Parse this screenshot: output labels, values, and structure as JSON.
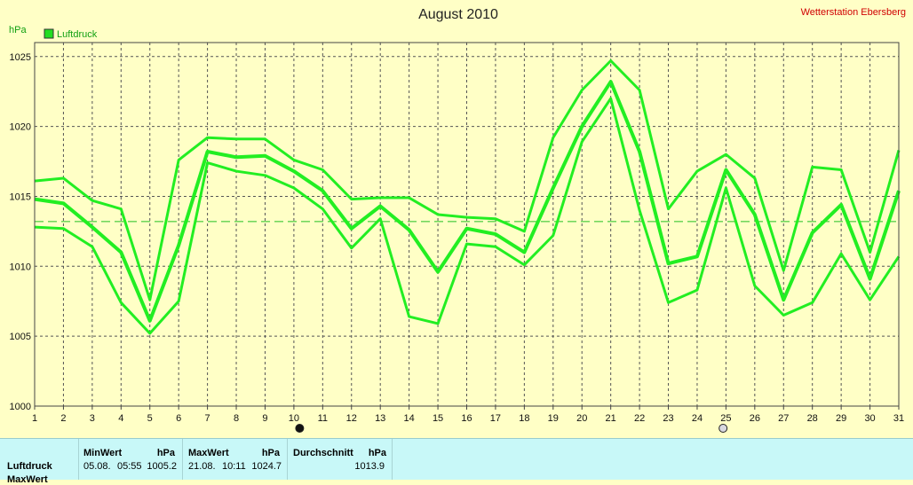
{
  "chart_data": {
    "type": "line",
    "title": "August 2010",
    "station": "Wetterstation Ebersberg",
    "ylabel": "hPa",
    "legend": [
      {
        "label": "Luftdruck",
        "color": "#22dd22"
      }
    ],
    "legend_placement": "top-left",
    "grid": true,
    "ylim": [
      1000,
      1026
    ],
    "yticks": [
      1000,
      1005,
      1010,
      1015,
      1020,
      1025
    ],
    "x": [
      1,
      2,
      3,
      4,
      5,
      6,
      7,
      8,
      9,
      10,
      11,
      12,
      13,
      14,
      15,
      16,
      17,
      18,
      19,
      20,
      21,
      22,
      23,
      24,
      25,
      26,
      27,
      28,
      29,
      30,
      31
    ],
    "mean_line": 1013.2,
    "series": [
      {
        "role": "max",
        "values": [
          1016.1,
          1016.3,
          1014.7,
          1014.1,
          1007.6,
          1017.6,
          1019.2,
          1019.1,
          1019.1,
          1017.6,
          1016.9,
          1014.8,
          1014.9,
          1014.9,
          1013.7,
          1013.5,
          1013.4,
          1012.5,
          1019.2,
          1022.6,
          1024.7,
          1022.6,
          1014.1,
          1016.8,
          1018.0,
          1016.3,
          1009.7,
          1017.1,
          1016.9,
          1011.0,
          1018.3
        ]
      },
      {
        "role": "avg",
        "values": [
          1014.8,
          1014.5,
          1012.8,
          1011.0,
          1006.1,
          1011.5,
          1018.2,
          1017.8,
          1017.9,
          1016.8,
          1015.4,
          1012.7,
          1014.3,
          1012.6,
          1009.6,
          1012.7,
          1012.3,
          1011.0,
          1015.6,
          1020.0,
          1023.2,
          1018.2,
          1010.2,
          1010.7,
          1016.9,
          1013.7,
          1007.6,
          1012.4,
          1014.4,
          1009.1,
          1015.4
        ]
      },
      {
        "role": "min",
        "values": [
          1012.8,
          1012.7,
          1011.4,
          1007.4,
          1005.2,
          1007.5,
          1017.4,
          1016.8,
          1016.5,
          1015.6,
          1014.1,
          1011.3,
          1013.4,
          1006.4,
          1005.9,
          1011.6,
          1011.4,
          1010.1,
          1012.2,
          1018.9,
          1022.0,
          1014.0,
          1007.4,
          1008.3,
          1015.6,
          1008.6,
          1006.5,
          1007.4,
          1010.9,
          1007.6,
          1010.7
        ]
      }
    ],
    "markers": [
      {
        "x": 10.2,
        "symbol": "new-moon",
        "color": "#111111"
      },
      {
        "x": 24.9,
        "symbol": "full-moon",
        "color": "#d8d8e0"
      }
    ],
    "colors": {
      "line": "#22ee22",
      "grid": "#555555",
      "mean": "#22c022",
      "background": "#ffffc6"
    }
  },
  "stats": {
    "headers": {
      "min": "MinWert",
      "max": "MaxWert",
      "avg": "Durchschnitt",
      "unit": "hPa"
    },
    "rows": [
      {
        "label": "Luftdruck",
        "min_date": "05.08.",
        "min_time": "05:55",
        "min_value": "1005.2",
        "max_date": "21.08.",
        "max_time": "10:11",
        "max_value": "1024.7",
        "avg_value": "1013.9"
      }
    ],
    "next_row_label": "MaxWert"
  }
}
